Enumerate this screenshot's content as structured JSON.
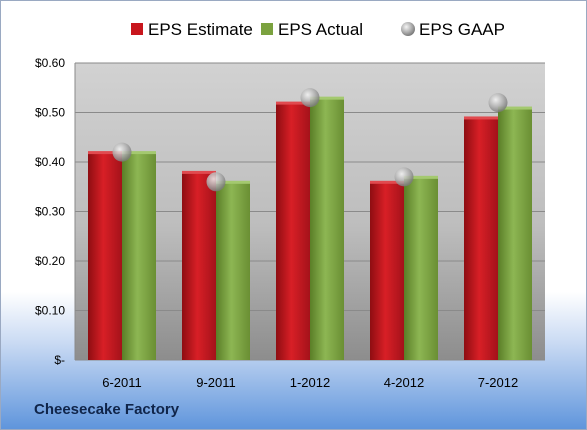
{
  "chart_data": {
    "type": "bar",
    "categories": [
      "6-2011",
      "9-2011",
      "1-2012",
      "4-2012",
      "7-2012"
    ],
    "series": [
      {
        "name": "EPS Estimate",
        "values": [
          0.42,
          0.38,
          0.52,
          0.36,
          0.49
        ],
        "color": "#c8161d"
      },
      {
        "name": "EPS Actual",
        "values": [
          0.42,
          0.36,
          0.53,
          0.37,
          0.51
        ],
        "color": "#7ba23f"
      },
      {
        "name": "EPS GAAP",
        "values": [
          0.42,
          0.36,
          0.53,
          0.37,
          0.52
        ],
        "color": "#a8a8a8",
        "marker": "sphere"
      }
    ],
    "ylim": [
      0,
      0.6
    ],
    "y_ticks": [
      {
        "value": 0,
        "label": "$-"
      },
      {
        "value": 0.1,
        "label": "$0.10"
      },
      {
        "value": 0.2,
        "label": "$0.20"
      },
      {
        "value": 0.3,
        "label": "$0.30"
      },
      {
        "value": 0.4,
        "label": "$0.40"
      },
      {
        "value": 0.5,
        "label": "$0.50"
      },
      {
        "value": 0.6,
        "label": "$0.60"
      }
    ],
    "grid": true,
    "legend": "top"
  },
  "footer": {
    "company": "Cheesecake Factory"
  }
}
